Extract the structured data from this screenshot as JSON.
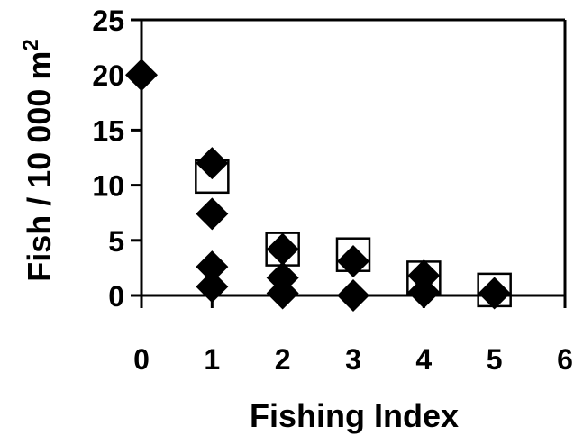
{
  "chart_data": {
    "type": "scatter",
    "title": "",
    "xlabel": "Fishing Index",
    "ylabel": "Fish / 10 000 m",
    "ylabel_superscript": "2",
    "xlim": [
      0,
      6
    ],
    "ylim": [
      0,
      25
    ],
    "xticks": [
      "0",
      "1",
      "2",
      "3",
      "4",
      "5",
      "6"
    ],
    "yticks": [
      "0",
      "5",
      "10",
      "15",
      "20",
      "25"
    ],
    "grid": false,
    "legend": "none",
    "series": [
      {
        "marker": "diamond-filled",
        "color": "#000000",
        "points": [
          {
            "x": 0,
            "y": 20
          },
          {
            "x": 1,
            "y": 12
          },
          {
            "x": 1,
            "y": 7.4
          },
          {
            "x": 1,
            "y": 2.6
          },
          {
            "x": 1,
            "y": 0.8
          },
          {
            "x": 2,
            "y": 4.2
          },
          {
            "x": 2,
            "y": 1.6
          },
          {
            "x": 2,
            "y": 0.2
          },
          {
            "x": 3,
            "y": 3.1
          },
          {
            "x": 3,
            "y": 0
          },
          {
            "x": 4,
            "y": 1.8
          },
          {
            "x": 4,
            "y": 0.3
          },
          {
            "x": 5,
            "y": 0.2
          }
        ]
      },
      {
        "marker": "square-open",
        "color": "#000000",
        "points": [
          {
            "x": 1,
            "y": 10.8
          },
          {
            "x": 2,
            "y": 4.2
          },
          {
            "x": 3,
            "y": 3.7
          },
          {
            "x": 4,
            "y": 1.6
          },
          {
            "x": 5,
            "y": 0.5
          }
        ]
      }
    ]
  }
}
